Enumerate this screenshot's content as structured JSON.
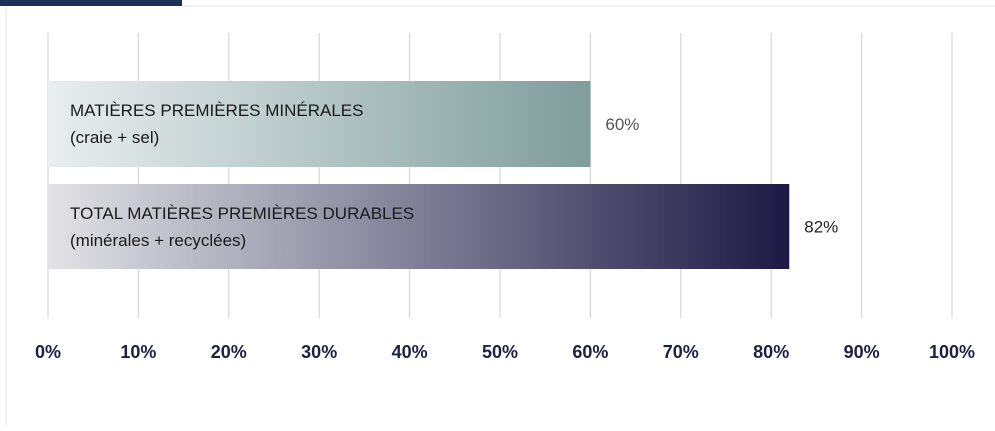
{
  "chart_data": {
    "type": "bar",
    "orientation": "horizontal",
    "categories": [
      [
        "MATIÈRES PREMIÈRES MINÉRALES",
        "(craie + sel)"
      ],
      [
        "TOTAL MATIÈRES PREMIÈRES DURABLES",
        "(minérales + recyclées)"
      ]
    ],
    "values": [
      60,
      82
    ],
    "value_labels": [
      "60%",
      "82%"
    ],
    "xlim": [
      0,
      100
    ],
    "x_ticks": [
      0,
      10,
      20,
      30,
      40,
      50,
      60,
      70,
      80,
      90,
      100
    ],
    "x_tick_labels": [
      "0%",
      "10%",
      "20%",
      "30%",
      "40%",
      "50%",
      "60%",
      "70%",
      "80%",
      "90%",
      "100%"
    ],
    "grid": "vertical",
    "legend": "none",
    "colors": {
      "bar_1_start": "#e9eef0",
      "bar_1_end": "#7f9d9b",
      "bar_2_start": "#e2e2e6",
      "bar_2_end": "#1c1a45",
      "gridline": "#d9d9d9",
      "tick_label": "#1e1f44",
      "value_label_1": "#555555",
      "value_label_2": "#222222",
      "header_accent": "#1e2f5a"
    }
  }
}
